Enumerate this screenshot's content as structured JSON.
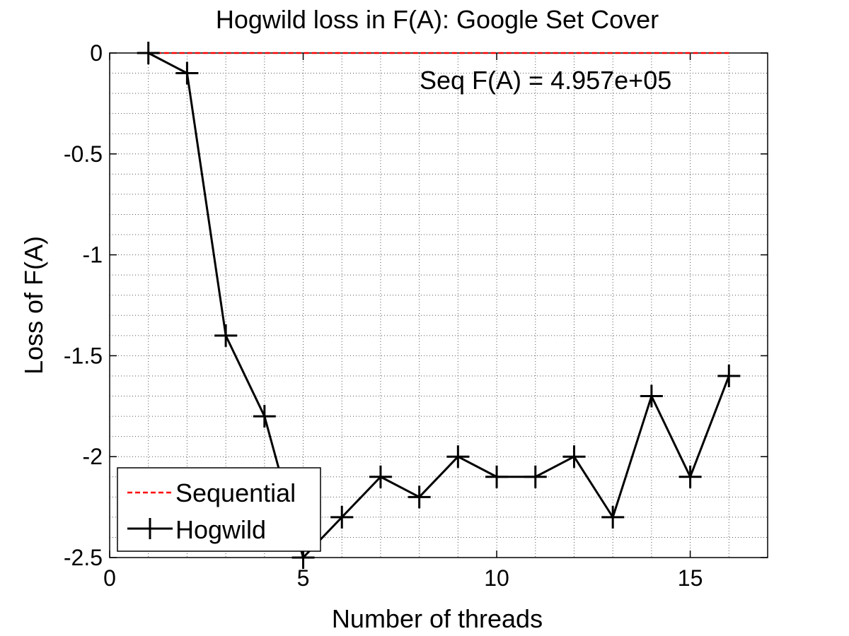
{
  "chart_data": {
    "type": "line",
    "title": "Hogwild loss in F(A): Google Set Cover",
    "xlabel": "Number of threads",
    "ylabel": "Loss of F(A)",
    "xlim": [
      0,
      17
    ],
    "ylim": [
      -2.5,
      0
    ],
    "xticks": [
      0,
      5,
      10,
      15
    ],
    "xtick_labels": [
      "0",
      "5",
      "10",
      "15"
    ],
    "yticks": [
      0,
      -0.5,
      -1,
      -1.5,
      -2,
      -2.5
    ],
    "ytick_labels": [
      "0",
      "-0.5",
      "-1",
      "-1.5",
      "-2",
      "-2.5"
    ],
    "grid": true,
    "minor_grid": true,
    "legend_position": "bottom-left",
    "annotation": "Seq F(A) = 4.957e+05",
    "series": [
      {
        "name": "Sequential",
        "color": "#ff0000",
        "style": "dashed",
        "marker": "none",
        "x": [
          1,
          16
        ],
        "y": [
          0,
          0
        ]
      },
      {
        "name": "Hogwild",
        "color": "#000000",
        "style": "solid",
        "marker": "plus",
        "x": [
          1,
          2,
          3,
          4,
          5,
          6,
          7,
          8,
          9,
          10,
          11,
          12,
          13,
          14,
          15,
          16
        ],
        "y": [
          0,
          -0.1,
          -1.4,
          -1.8,
          -2.5,
          -2.3,
          -2.1,
          -2.2,
          -2.0,
          -2.1,
          -2.1,
          -2.0,
          -2.3,
          -1.7,
          -2.1,
          -1.6
        ]
      }
    ]
  }
}
